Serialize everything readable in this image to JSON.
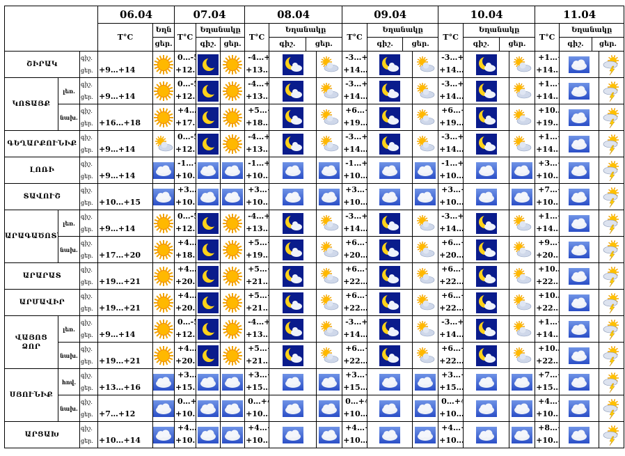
{
  "header": {
    "dates": [
      "06.04",
      "07.04",
      "08.04",
      "09.04",
      "10.04",
      "11.04"
    ],
    "temp_label": "T°C",
    "weather_label_short": "Եղն",
    "weather_label": "Եղանակը",
    "night_abbr": "գիշ.",
    "day_abbr": "ցեր."
  },
  "regions": [
    {
      "name": "ՇԻՐԱԿ",
      "rows": [
        {
          "sub": "",
          "n": "գիշ.",
          "d": "ցեր.",
          "c06": "+9…+14",
          "i06": "sun",
          "days": [
            {
              "n": "0…-5",
              "d": "+12…+16",
              "in": "moon",
              "id": "sun"
            },
            {
              "n": "-4…+1",
              "d": "+13…+17",
              "in": "mooncloud",
              "id": "suncloud"
            },
            {
              "n": "-3…+2",
              "d": "+14…+18",
              "in": "mooncloud",
              "id": "suncloud"
            },
            {
              "n": "-3…+2",
              "d": "+14…+18",
              "in": "mooncloud",
              "id": "suncloud"
            },
            {
              "n": "+1…+6",
              "d": "+14…+18",
              "in": "cloud",
              "id": "storm"
            }
          ]
        }
      ]
    },
    {
      "name": "ԿՈՏԱՅՔ",
      "rows": [
        {
          "sub": "լեռ.",
          "n": "գիշ.",
          "d": "ցեր.",
          "c06": "+9…+14",
          "i06": "sun",
          "days": [
            {
              "n": "0…-5",
              "d": "+12…+16",
              "in": "moon",
              "id": "sun"
            },
            {
              "n": "-4…+1",
              "d": "+13…+17",
              "in": "mooncloud",
              "id": "suncloud"
            },
            {
              "n": "-3…+2",
              "d": "+14…+18",
              "in": "mooncloud",
              "id": "suncloud"
            },
            {
              "n": "-3…+2",
              "d": "+14…+18",
              "in": "mooncloud",
              "id": "suncloud"
            },
            {
              "n": "+1…+6",
              "d": "+14…+18",
              "in": "cloud",
              "id": "storm"
            }
          ]
        },
        {
          "sub": "նախ.",
          "n": "գիշ.",
          "d": "ցեր.",
          "c06": "+16…+18",
          "i06": "sun",
          "days": [
            {
              "n": "+4…+6",
              "d": "+17…+20",
              "in": "moon",
              "id": "sun"
            },
            {
              "n": "+5…+7",
              "d": "+18…+21",
              "in": "mooncloud",
              "id": "suncloud"
            },
            {
              "n": "+6…+8",
              "d": "+19…+22",
              "in": "mooncloud",
              "id": "suncloud"
            },
            {
              "n": "+6…+8",
              "d": "+19…+22",
              "in": "mooncloud",
              "id": "suncloud"
            },
            {
              "n": "+10…+12",
              "d": "+19…+22",
              "in": "cloud",
              "id": "storm"
            }
          ]
        }
      ]
    },
    {
      "name": "ԳԵՂԱՐՔՈՒՆԻՔ",
      "rows": [
        {
          "sub": "",
          "n": "գիշ.",
          "d": "ցեր.",
          "c06": "+9…+14",
          "i06": "suncloud",
          "days": [
            {
              "n": "0…-5",
              "d": "+12…+16",
              "in": "moon",
              "id": "sun"
            },
            {
              "n": "-4…+1",
              "d": "+13…+17",
              "in": "mooncloud",
              "id": "suncloud"
            },
            {
              "n": "-3…+2",
              "d": "+14…+18",
              "in": "mooncloud",
              "id": "suncloud"
            },
            {
              "n": "-3…+2",
              "d": "+14…+18",
              "in": "mooncloud",
              "id": "suncloud"
            },
            {
              "n": "+1…+6",
              "d": "+14…+18",
              "in": "cloud",
              "id": "storm"
            }
          ]
        }
      ]
    },
    {
      "name": "ԼՈՌԻ",
      "rows": [
        {
          "sub": "",
          "n": "գիշ.",
          "d": "ցեր.",
          "c06": "+9…+14",
          "i06": "cloud",
          "days": [
            {
              "n": "-1…+4",
              "d": "+10…+14",
              "in": "cloud",
              "id": "cloud"
            },
            {
              "n": "-1…+4",
              "d": "+10…+14",
              "in": "cloud",
              "id": "cloud"
            },
            {
              "n": "-1…+4",
              "d": "+10…+14",
              "in": "cloud",
              "id": "cloud"
            },
            {
              "n": "-1…+4",
              "d": "+10…+14",
              "in": "cloud",
              "id": "cloud"
            },
            {
              "n": "+3…+8",
              "d": "+10…+14",
              "in": "cloud",
              "id": "storm"
            }
          ]
        }
      ]
    },
    {
      "name": "ՏԱՎՈՒՇ",
      "rows": [
        {
          "sub": "",
          "n": "գիշ.",
          "d": "ցեր.",
          "c06": "+10…+15",
          "i06": "cloud",
          "days": [
            {
              "n": "+3…+6",
              "d": "+10…+15",
              "in": "cloud",
              "id": "cloud"
            },
            {
              "n": "+3…+6",
              "d": "+10…+15",
              "in": "cloud",
              "id": "cloud"
            },
            {
              "n": "+3…+6",
              "d": "+10…+15",
              "in": "cloud",
              "id": "cloud"
            },
            {
              "n": "+3…+6",
              "d": "+10…+15",
              "in": "cloud",
              "id": "cloud"
            },
            {
              "n": "+7…+10",
              "d": "+10…+15",
              "in": "cloud",
              "id": "storm"
            }
          ]
        }
      ]
    },
    {
      "name": "ԱՐԱԳԱԾՈՏՆ",
      "rows": [
        {
          "sub": "լեռ.",
          "n": "գիշ.",
          "d": "ցեր.",
          "c06": "+9…+14",
          "i06": "sun",
          "days": [
            {
              "n": "0…-5",
              "d": "+12…+16",
              "in": "moon",
              "id": "sun"
            },
            {
              "n": "-4…+1",
              "d": "+13…+17",
              "in": "mooncloud",
              "id": "suncloud"
            },
            {
              "n": "-3…+2",
              "d": "+14…+18",
              "in": "mooncloud",
              "id": "suncloud"
            },
            {
              "n": "-3…+2",
              "d": "+14…+18",
              "in": "mooncloud",
              "id": "suncloud"
            },
            {
              "n": "+1…+6",
              "d": "+14…+18",
              "in": "cloud",
              "id": "storm"
            }
          ]
        },
        {
          "sub": "նախ.",
          "n": "գիշ.",
          "d": "ցեր.",
          "c06": "+17…+20",
          "i06": "sun",
          "days": [
            {
              "n": "+4…+6",
              "d": "+18…+21",
              "in": "moon",
              "id": "sun"
            },
            {
              "n": "+5…+7",
              "d": "+19…+22",
              "in": "mooncloud",
              "id": "suncloud"
            },
            {
              "n": "+6…+8",
              "d": "+20…+23",
              "in": "mooncloud",
              "id": "suncloud"
            },
            {
              "n": "+6…+8",
              "d": "+20…+23",
              "in": "mooncloud",
              "id": "suncloud"
            },
            {
              "n": "+9…+12",
              "d": "+20…+23",
              "in": "cloud",
              "id": "storm"
            }
          ]
        }
      ]
    },
    {
      "name": "ԱՐԱՐԱՏ",
      "rows": [
        {
          "sub": "",
          "n": "գիշ.",
          "d": "ցեր.",
          "c06": "+19…+21",
          "i06": "sun",
          "days": [
            {
              "n": "+4…+6",
              "d": "+20…+23",
              "in": "moon",
              "id": "sun"
            },
            {
              "n": "+5…+7",
              "d": "+21…+24",
              "in": "mooncloud",
              "id": "suncloud"
            },
            {
              "n": "+6…+8",
              "d": "+22…+25",
              "in": "mooncloud",
              "id": "suncloud"
            },
            {
              "n": "+6…+8",
              "d": "+22…+25",
              "in": "mooncloud",
              "id": "suncloud"
            },
            {
              "n": "+10…+12",
              "d": "+22…+25",
              "in": "cloud",
              "id": "storm"
            }
          ]
        }
      ]
    },
    {
      "name": "ԱՐՄԱՎԻՐ",
      "rows": [
        {
          "sub": "",
          "n": "գիշ.",
          "d": "ցեր.",
          "c06": "+19…+21",
          "i06": "sun",
          "days": [
            {
              "n": "+4…+6",
              "d": "+20…+23",
              "in": "moon",
              "id": "sun"
            },
            {
              "n": "+5…+7",
              "d": "+21…+24",
              "in": "mooncloud",
              "id": "suncloud"
            },
            {
              "n": "+6…+8",
              "d": "+22…+25",
              "in": "mooncloud",
              "id": "suncloud"
            },
            {
              "n": "+6…+8",
              "d": "+22…+25",
              "in": "mooncloud",
              "id": "suncloud"
            },
            {
              "n": "+10…+12",
              "d": "+22…+25",
              "in": "cloud",
              "id": "storm"
            }
          ]
        }
      ]
    },
    {
      "name": "ՎԱՅՈՑ ՁՈՐ",
      "rows": [
        {
          "sub": "լեռ.",
          "n": "գիշ.",
          "d": "ցեր.",
          "c06": "+9…+14",
          "i06": "sun",
          "days": [
            {
              "n": "0…-5",
              "d": "+12…+16",
              "in": "moon",
              "id": "sun"
            },
            {
              "n": "-4…+1",
              "d": "+13…+17",
              "in": "mooncloud",
              "id": "suncloud"
            },
            {
              "n": "-3…+2",
              "d": "+14…+18",
              "in": "mooncloud",
              "id": "suncloud"
            },
            {
              "n": "-3…+2",
              "d": "+14…+18",
              "in": "mooncloud",
              "id": "suncloud"
            },
            {
              "n": "+1…+6",
              "d": "+14…+18",
              "in": "cloud",
              "id": "storm"
            }
          ]
        },
        {
          "sub": "նախ.",
          "n": "գիշ.",
          "d": "ցեր.",
          "c06": "+19…+21",
          "i06": "sun",
          "days": [
            {
              "n": "+4…+6",
              "d": "+20…+23",
              "in": "moon",
              "id": "sun"
            },
            {
              "n": "+5…+7",
              "d": "+21…+24",
              "in": "mooncloud",
              "id": "suncloud"
            },
            {
              "n": "+6…+8",
              "d": "+22…+25",
              "in": "mooncloud",
              "id": "suncloud"
            },
            {
              "n": "+6…+8",
              "d": "+22…+25",
              "in": "mooncloud",
              "id": "suncloud"
            },
            {
              "n": "+10…+12",
              "d": "+22…+25",
              "in": "cloud",
              "id": "storm"
            }
          ]
        }
      ]
    },
    {
      "name": "ՍՅՈՒՆԻՔ",
      "rows": [
        {
          "sub": "հով.",
          "n": "գիշ.",
          "d": "ցեր.",
          "c06": "+13…+16",
          "i06": "cloud",
          "days": [
            {
              "n": "+3…+8",
              "d": "+15…+18",
              "in": "cloud",
              "id": "cloud"
            },
            {
              "n": "+3…+8",
              "d": "+15…+18",
              "in": "cloud",
              "id": "cloud"
            },
            {
              "n": "+3…+8",
              "d": "+15…+18",
              "in": "cloud",
              "id": "cloud"
            },
            {
              "n": "+3…+8",
              "d": "+15…+18",
              "in": "cloud",
              "id": "cloud"
            },
            {
              "n": "+7…+12",
              "d": "+15…+18",
              "in": "cloud",
              "id": "storm"
            }
          ]
        },
        {
          "sub": "նախ.",
          "n": "գիշ.",
          "d": "ցեր.",
          "c06": "+7…+12",
          "i06": "cloud",
          "days": [
            {
              "n": "0…+4",
              "d": "+10…+13",
              "in": "cloud",
              "id": "cloud"
            },
            {
              "n": "0…+4",
              "d": "+10…+13",
              "in": "cloud",
              "id": "cloud"
            },
            {
              "n": "0…+4",
              "d": "+10…+13",
              "in": "cloud",
              "id": "cloud"
            },
            {
              "n": "0…+4",
              "d": "+10…+13",
              "in": "cloud",
              "id": "cloud"
            },
            {
              "n": "+4…+8",
              "d": "+10…+13",
              "in": "cloud",
              "id": "storm"
            }
          ]
        }
      ]
    },
    {
      "name": "ԱՐՑԱԽ",
      "rows": [
        {
          "sub": "",
          "n": "գիշ.",
          "d": "ցեր.",
          "c06": "+10…+14",
          "i06": "cloud",
          "days": [
            {
              "n": "+4…+7",
              "d": "+10…+14",
              "in": "cloud",
              "id": "cloud"
            },
            {
              "n": "+4…+7",
              "d": "+10…+14",
              "in": "cloud",
              "id": "cloud"
            },
            {
              "n": "+4…+7",
              "d": "+10…+14",
              "in": "cloud",
              "id": "cloud"
            },
            {
              "n": "+4…+7",
              "d": "+10…+14",
              "in": "cloud",
              "id": "cloud"
            },
            {
              "n": "+8…+11",
              "d": "+10…+14",
              "in": "cloud",
              "id": "storm"
            }
          ]
        }
      ]
    }
  ]
}
